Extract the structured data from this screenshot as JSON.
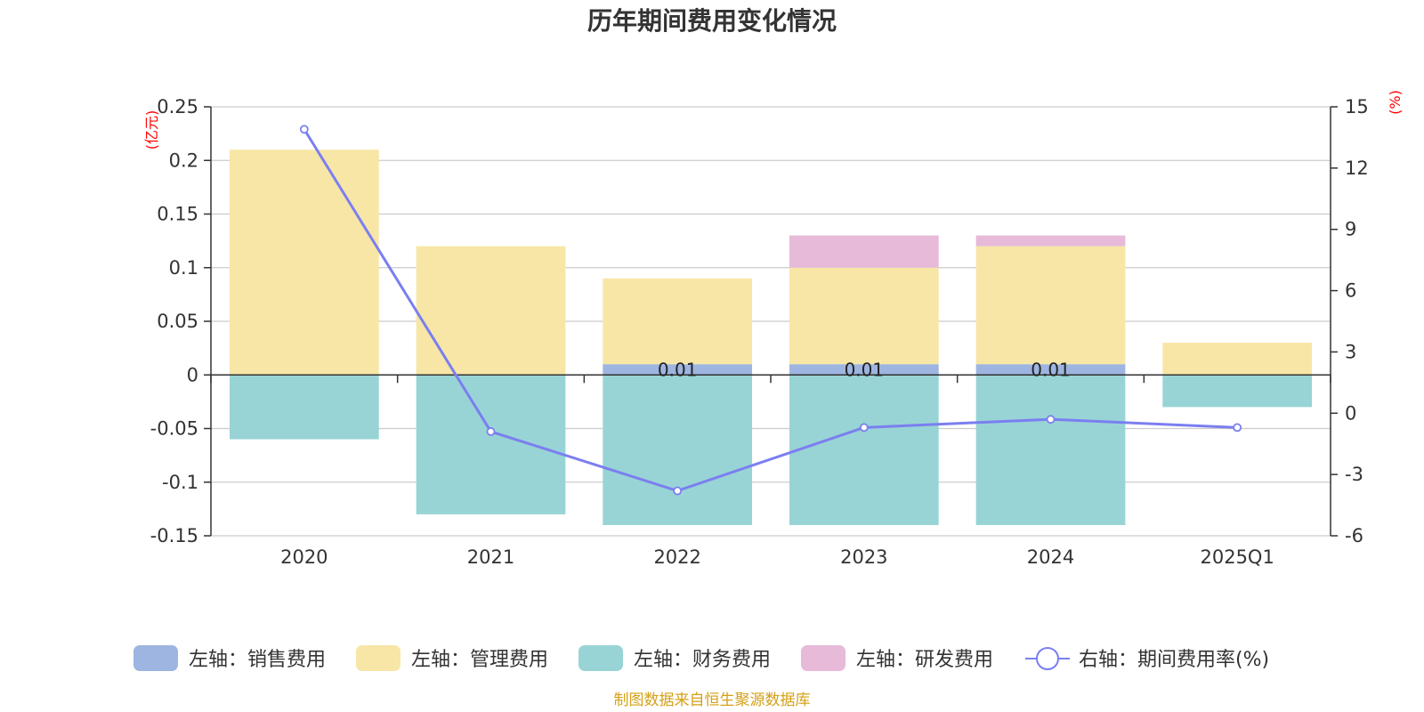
{
  "chart_data": {
    "type": "bar",
    "title": "历年期间费用变化情况",
    "categories": [
      "2020",
      "2021",
      "2022",
      "2023",
      "2024",
      "2025Q1"
    ],
    "left_axis": {
      "unit": "(亿元)",
      "ylim": [
        -0.15,
        0.25
      ],
      "ticks": [
        "-0.15",
        "-0.1",
        "-0.05",
        "0",
        "0.05",
        "0.1",
        "0.15",
        "0.2",
        "0.25"
      ]
    },
    "right_axis": {
      "unit": "(%)",
      "ylim": [
        -6,
        15
      ],
      "ticks": [
        "-6",
        "-3",
        "0",
        "3",
        "6",
        "9",
        "12",
        "15"
      ]
    },
    "series": [
      {
        "name": "左轴：销售费用",
        "axis": "left",
        "kind": "bar",
        "color": "#9db5e0",
        "values": [
          0,
          0,
          0.01,
          0.01,
          0.01,
          0
        ]
      },
      {
        "name": "左轴：管理费用",
        "axis": "left",
        "kind": "bar",
        "color": "#f7e6a6",
        "values": [
          0.21,
          0.12,
          0.08,
          0.09,
          0.11,
          0.03
        ]
      },
      {
        "name": "左轴：财务费用",
        "axis": "left",
        "kind": "bar",
        "color": "#98d4d5",
        "values": [
          -0.06,
          -0.13,
          -0.14,
          -0.14,
          -0.14,
          -0.03
        ]
      },
      {
        "name": "左轴：研发费用",
        "axis": "left",
        "kind": "bar",
        "color": "#e6bad8",
        "values": [
          0,
          0,
          0,
          0.03,
          0.01,
          0
        ]
      },
      {
        "name": "右轴：期间费用率(%)",
        "axis": "right",
        "kind": "line",
        "color": "#7b7ff0",
        "values": [
          13.9,
          -0.9,
          -3.8,
          -0.7,
          -0.3,
          -0.7
        ]
      }
    ],
    "data_labels": [
      "",
      "",
      "0.01",
      "0.01",
      "0.01",
      ""
    ],
    "source": "制图数据来自恒生聚源数据库"
  }
}
